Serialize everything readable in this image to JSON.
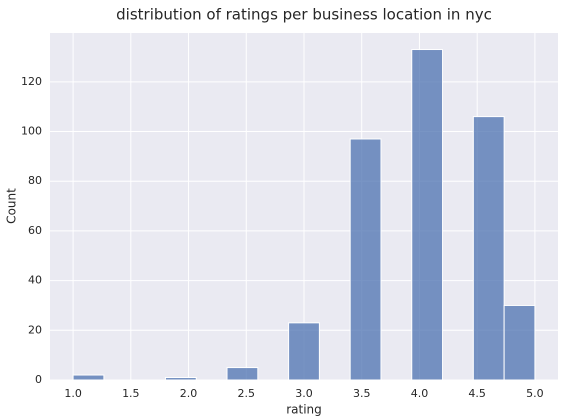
{
  "chart_data": {
    "type": "histogram",
    "title": "distribution of ratings per business location in nyc",
    "x_label": "rating",
    "y_label": "Count",
    "bins": [
      1.0,
      1.2667,
      1.5333,
      1.8,
      2.0667,
      2.3333,
      2.6,
      2.8667,
      3.1333,
      3.4,
      3.6667,
      3.9333,
      4.2,
      4.4667,
      4.7333,
      5.0
    ],
    "values": [
      2,
      0,
      0,
      1,
      0,
      5,
      0,
      23,
      0,
      97,
      0,
      133,
      0,
      106,
      30
    ],
    "color": "#4c72b0",
    "xlim": [
      0.8,
      5.2
    ],
    "xticks": [
      {
        "value": 1.0,
        "label": "1.0"
      },
      {
        "value": 1.5,
        "label": "1.5"
      },
      {
        "value": 2.0,
        "label": "2.0"
      },
      {
        "value": 2.5,
        "label": "2.5"
      },
      {
        "value": 3.0,
        "label": "3.0"
      },
      {
        "value": 3.5,
        "label": "3.5"
      },
      {
        "value": 4.0,
        "label": "4.0"
      },
      {
        "value": 4.5,
        "label": "4.5"
      },
      {
        "value": 5.0,
        "label": "5.0"
      }
    ],
    "ylim": [
      0,
      139.65
    ],
    "yticks": [
      0,
      20,
      40,
      60,
      80,
      100,
      120
    ],
    "grid": true
  }
}
